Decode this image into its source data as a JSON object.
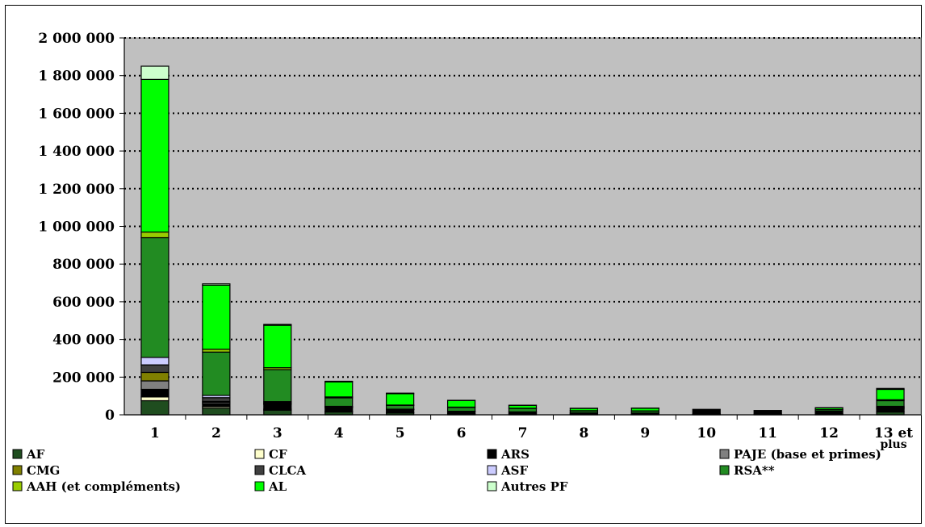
{
  "chart_data": {
    "type": "bar",
    "stacked": true,
    "title": "",
    "xlabel": "",
    "ylabel": "",
    "ylim": [
      0,
      2000000
    ],
    "yticks": [
      0,
      200000,
      400000,
      600000,
      800000,
      1000000,
      1200000,
      1400000,
      1600000,
      1800000,
      2000000
    ],
    "ytick_labels": [
      "0",
      "200 000",
      "400 000",
      "600 000",
      "800 000",
      "1 000 000",
      "1 200 000",
      "1 400 000",
      "1 600 000",
      "1 800 000",
      "2 000 000"
    ],
    "grid": "horizontal dotted",
    "legend_position": "bottom",
    "categories": [
      "1",
      "2",
      "3",
      "4",
      "5",
      "6",
      "7",
      "8",
      "9",
      "10",
      "11",
      "12",
      "13 et plus"
    ],
    "series": [
      {
        "name": "AF",
        "color": "#1f4d1f",
        "values": [
          75000,
          35000,
          25000,
          15000,
          10000,
          5000,
          5000,
          4000,
          4000,
          3000,
          2000,
          3000,
          15000
        ]
      },
      {
        "name": "CF",
        "color": "#ffffcc",
        "values": [
          20000,
          8000,
          5000,
          3000,
          2000,
          1000,
          1000,
          1000,
          1000,
          1000,
          1000,
          1000,
          5000
        ]
      },
      {
        "name": "ARS",
        "color": "#000000",
        "values": [
          40000,
          15000,
          25000,
          20000,
          15000,
          10000,
          8000,
          5000,
          4000,
          25000,
          20000,
          15000,
          10000
        ]
      },
      {
        "name": "PAJE (base et primes)",
        "color": "#808080",
        "values": [
          45000,
          8000,
          4000,
          2000,
          1000,
          1000,
          1000,
          1000,
          1000,
          0,
          0,
          0,
          5000
        ]
      },
      {
        "name": "CMG",
        "color": "#808000",
        "values": [
          45000,
          5000,
          2000,
          1000,
          0,
          0,
          0,
          0,
          0,
          0,
          0,
          0,
          2000
        ]
      },
      {
        "name": "CLCA",
        "color": "#404040",
        "values": [
          40000,
          20000,
          4000,
          2000,
          1000,
          1000,
          1000,
          0,
          0,
          0,
          0,
          0,
          3000
        ]
      },
      {
        "name": "ASF",
        "color": "#ccccff",
        "values": [
          40000,
          12000,
          5000,
          2000,
          1000,
          1000,
          0,
          0,
          0,
          0,
          0,
          0,
          5000
        ]
      },
      {
        "name": "RSA**",
        "color": "#228b22",
        "values": [
          635000,
          230000,
          170000,
          45000,
          20000,
          20000,
          18000,
          10000,
          10000,
          0,
          0,
          8000,
          30000
        ]
      },
      {
        "name": "AAH (et compléments)",
        "color": "#99cc00",
        "values": [
          30000,
          15000,
          10000,
          5000,
          2000,
          2000,
          1000,
          1000,
          1000,
          0,
          0,
          1000,
          5000
        ]
      },
      {
        "name": "AL",
        "color": "#00ff00",
        "values": [
          810000,
          340000,
          225000,
          80000,
          60000,
          35000,
          15000,
          12000,
          14000,
          0,
          0,
          9000,
          55000
        ]
      },
      {
        "name": "Autres PF",
        "color": "#ccffcc",
        "values": [
          70000,
          7000,
          5000,
          3000,
          3000,
          1000,
          1000,
          1000,
          1000,
          0,
          0,
          1000,
          5000
        ]
      }
    ]
  }
}
